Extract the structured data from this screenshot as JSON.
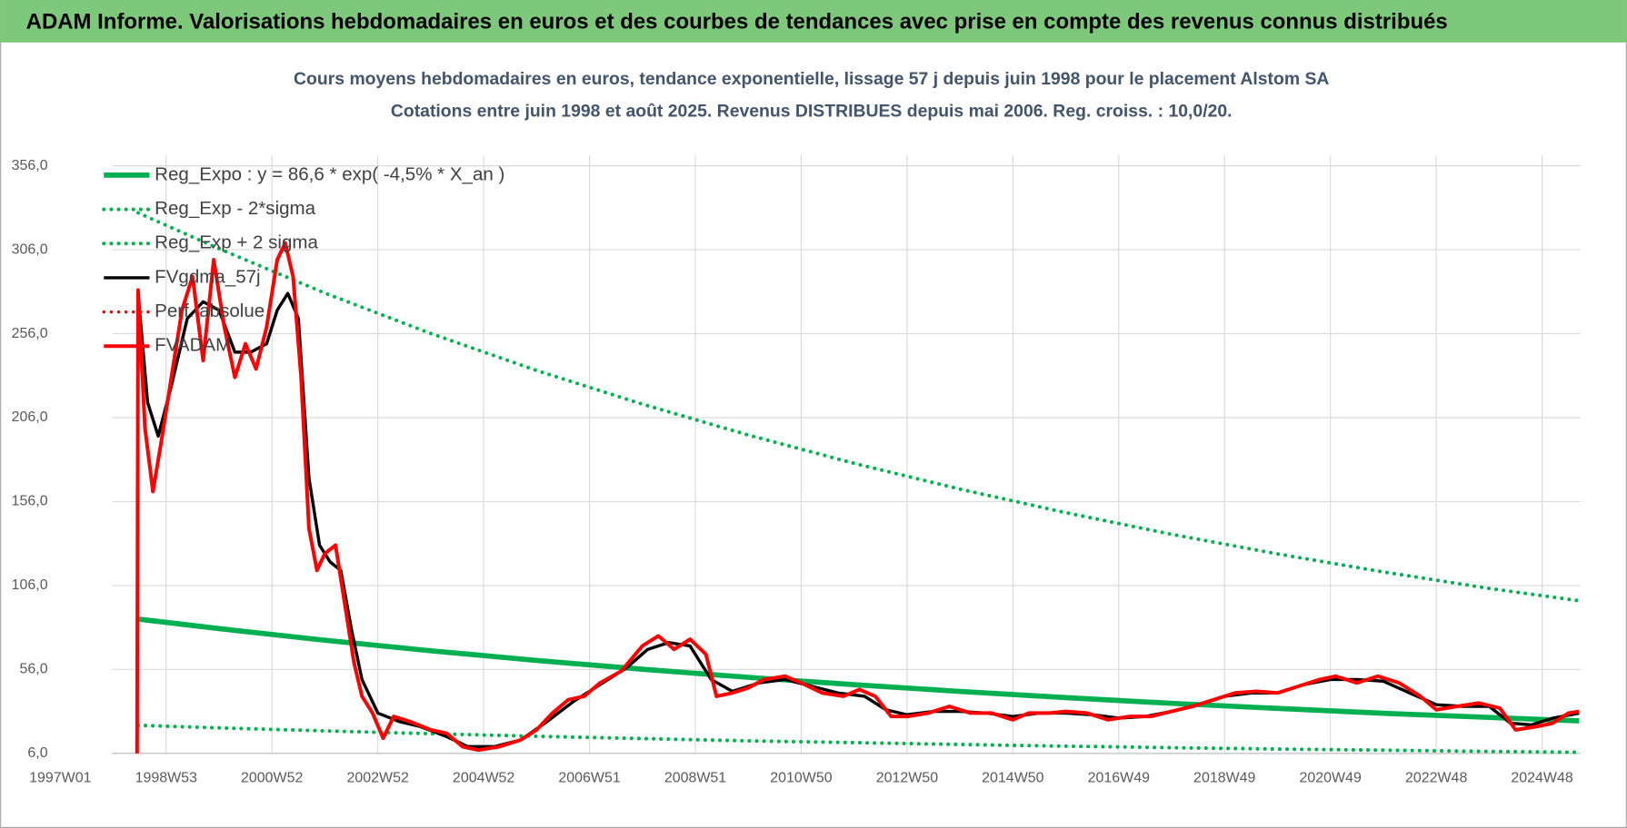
{
  "header": {
    "title": "ADAM Informe. Valorisations hebdomadaires en euros et des courbes de tendances avec prise en compte des revenus connus distribués"
  },
  "chart_data": {
    "type": "line",
    "title": "Cours moyens hebdomadaires en euros, tendance exponentielle, lissage 57 j depuis juin 1998 pour le placement Alstom SA",
    "subtitle": "Cotations entre juin 1998 et août 2025. Revenus DISTRIBUES depuis mai 2006. Reg. croiss. : 10,0/20.",
    "xlim": [
      1997,
      2025.72
    ],
    "xticks": [
      {
        "value": 1997,
        "label": "1997W01"
      },
      {
        "value": 1999,
        "label": "1998W53"
      },
      {
        "value": 2001,
        "label": "2000W52"
      },
      {
        "value": 2003,
        "label": "2002W52"
      },
      {
        "value": 2005,
        "label": "2004W52"
      },
      {
        "value": 2007,
        "label": "2006W51"
      },
      {
        "value": 2009,
        "label": "2008W51"
      },
      {
        "value": 2011,
        "label": "2010W50"
      },
      {
        "value": 2013,
        "label": "2012W50"
      },
      {
        "value": 2015,
        "label": "2014W50"
      },
      {
        "value": 2017,
        "label": "2016W49"
      },
      {
        "value": 2019,
        "label": "2018W49"
      },
      {
        "value": 2021,
        "label": "2020W49"
      },
      {
        "value": 2023,
        "label": "2022W48"
      },
      {
        "value": 2025,
        "label": "2024W48"
      }
    ],
    "ylim": [
      6,
      356
    ],
    "yticks": [
      {
        "value": 6,
        "label": "6,0"
      },
      {
        "value": 56,
        "label": "56,0"
      },
      {
        "value": 106,
        "label": "106,0"
      },
      {
        "value": 156,
        "label": "156,0"
      },
      {
        "value": 206,
        "label": "206,0"
      },
      {
        "value": 256,
        "label": "256,0"
      },
      {
        "value": 306,
        "label": "306,0"
      },
      {
        "value": 356,
        "label": "356,0"
      }
    ],
    "grid": true,
    "legend": "top-left",
    "series": [
      {
        "name": "Reg_Expo : y = 86,6 * exp( -4,5% *  X_an )",
        "color": "#00b050",
        "dash": "solid",
        "width": 5,
        "x": [
          1998.47,
          2000,
          2002,
          2004,
          2006,
          2008,
          2010,
          2012,
          2014,
          2016,
          2018,
          2020,
          2022,
          2024,
          2025.7
        ],
        "values": [
          86,
          80.3,
          73.4,
          67.1,
          61.4,
          56.1,
          51.3,
          46.9,
          42.9,
          39.2,
          35.8,
          32.8,
          29.9,
          27.4,
          25.4
        ]
      },
      {
        "name": "Reg_Exp - 2*sigma",
        "color": "#00b050",
        "dash": "dotted",
        "width": 3.5,
        "x": [
          1998.47,
          2000,
          2002,
          2004,
          2006,
          2008,
          2010,
          2012,
          2014,
          2016,
          2018,
          2020,
          2022,
          2024,
          2025.7
        ],
        "values": [
          22.7,
          21.2,
          19.4,
          17.7,
          16.2,
          14.8,
          13.5,
          12.4,
          11.3,
          10.3,
          9.4,
          8.6,
          7.9,
          7.2,
          6.7
        ]
      },
      {
        "name": "Reg_Exp + 2 sigma",
        "color": "#00b050",
        "dash": "dotted",
        "width": 3.5,
        "x": [
          1998.47,
          2000,
          2002,
          2004,
          2006,
          2008,
          2010,
          2012,
          2014,
          2016,
          2018,
          2020,
          2022,
          2024,
          2025.7
        ],
        "values": [
          328,
          306.6,
          280.2,
          256.1,
          234.1,
          214,
          195.6,
          178.8,
          163.4,
          149.4,
          136.5,
          124.8,
          114.1,
          104.3,
          96.9
        ]
      },
      {
        "name": "FVgdma_57j",
        "color": "#000000",
        "dash": "solid",
        "width": 3,
        "x": [
          1998.47,
          1998.65,
          1998.85,
          1999.1,
          1999.4,
          1999.7,
          2000.0,
          2000.3,
          2000.6,
          2000.9,
          2001.1,
          2001.3,
          2001.5,
          2001.7,
          2001.9,
          2002.1,
          2002.3,
          2002.5,
          2002.7,
          2003.0,
          2003.4,
          2003.8,
          2004.3,
          2004.7,
          2005.2,
          2005.7,
          2006.2,
          2006.7,
          2007.2,
          2007.7,
          2008.1,
          2008.5,
          2008.9,
          2009.3,
          2009.7,
          2010.2,
          2010.7,
          2011.2,
          2011.7,
          2012.2,
          2012.6,
          2013.0,
          2013.5,
          2014.0,
          2014.5,
          2015.0,
          2015.5,
          2016.0,
          2016.5,
          2017.0,
          2017.5,
          2018.0,
          2018.5,
          2019.0,
          2019.5,
          2020.0,
          2020.5,
          2021.0,
          2021.5,
          2022.0,
          2022.5,
          2023.0,
          2023.5,
          2024.0,
          2024.4,
          2024.8,
          2025.2,
          2025.7
        ],
        "values": [
          280,
          215,
          195,
          225,
          265,
          275,
          270,
          245,
          245,
          250,
          270,
          280,
          265,
          170,
          130,
          120,
          115,
          80,
          50,
          30,
          25,
          22,
          16,
          10,
          10,
          14,
          25,
          37,
          47,
          57,
          68,
          72,
          70,
          50,
          43,
          48,
          50,
          46,
          42,
          40,
          32,
          29,
          31,
          31,
          30,
          28,
          30,
          30,
          29,
          27,
          28,
          31,
          35,
          40,
          42,
          42,
          47,
          50,
          50,
          49,
          42,
          35,
          34,
          34,
          24,
          23,
          27,
          30
        ]
      },
      {
        "name": "Perf. absolue",
        "color": "#ff0000",
        "dash": "dotted",
        "width": 3,
        "x": [],
        "values": []
      },
      {
        "name": "FVADAM",
        "color": "#ff0000",
        "dash": "solid",
        "width": 3.5,
        "x": [
          1998.45,
          1998.47,
          1998.6,
          1998.75,
          1998.9,
          1999.1,
          1999.3,
          1999.5,
          1999.7,
          1999.9,
          2000.1,
          2000.3,
          2000.5,
          2000.7,
          2000.9,
          2001.1,
          2001.25,
          2001.4,
          2001.55,
          2001.7,
          2001.85,
          2002.0,
          2002.2,
          2002.4,
          2002.55,
          2002.7,
          2002.9,
          2003.1,
          2003.3,
          2003.6,
          2004.0,
          2004.3,
          2004.6,
          2004.9,
          2005.3,
          2005.7,
          2006.0,
          2006.3,
          2006.6,
          2006.9,
          2007.2,
          2007.6,
          2008.0,
          2008.3,
          2008.6,
          2008.9,
          2009.2,
          2009.4,
          2009.7,
          2010.0,
          2010.3,
          2010.7,
          2011.0,
          2011.4,
          2011.8,
          2012.1,
          2012.4,
          2012.7,
          2013.0,
          2013.4,
          2013.8,
          2014.2,
          2014.6,
          2015.0,
          2015.3,
          2015.7,
          2016.0,
          2016.4,
          2016.8,
          2017.2,
          2017.6,
          2018.0,
          2018.4,
          2018.8,
          2019.2,
          2019.6,
          2020.0,
          2020.4,
          2020.8,
          2021.1,
          2021.5,
          2021.9,
          2022.3,
          2022.7,
          2023.0,
          2023.4,
          2023.8,
          2024.2,
          2024.5,
          2024.9,
          2025.2,
          2025.5,
          2025.7
        ],
        "values": [
          6,
          282,
          200,
          162,
          190,
          230,
          270,
          290,
          240,
          300,
          260,
          230,
          250,
          235,
          260,
          300,
          310,
          290,
          230,
          140,
          115,
          125,
          130,
          90,
          60,
          40,
          30,
          15,
          28,
          25,
          20,
          18,
          10,
          8,
          10,
          14,
          20,
          30,
          38,
          40,
          48,
          55,
          70,
          76,
          68,
          74,
          65,
          40,
          42,
          45,
          50,
          52,
          48,
          42,
          40,
          44,
          40,
          28,
          28,
          30,
          34,
          30,
          30,
          26,
          30,
          30,
          31,
          30,
          26,
          28,
          28,
          31,
          34,
          38,
          42,
          43,
          42,
          46,
          50,
          52,
          48,
          52,
          48,
          40,
          32,
          34,
          36,
          33,
          20,
          22,
          24,
          30,
          31
        ]
      }
    ]
  }
}
